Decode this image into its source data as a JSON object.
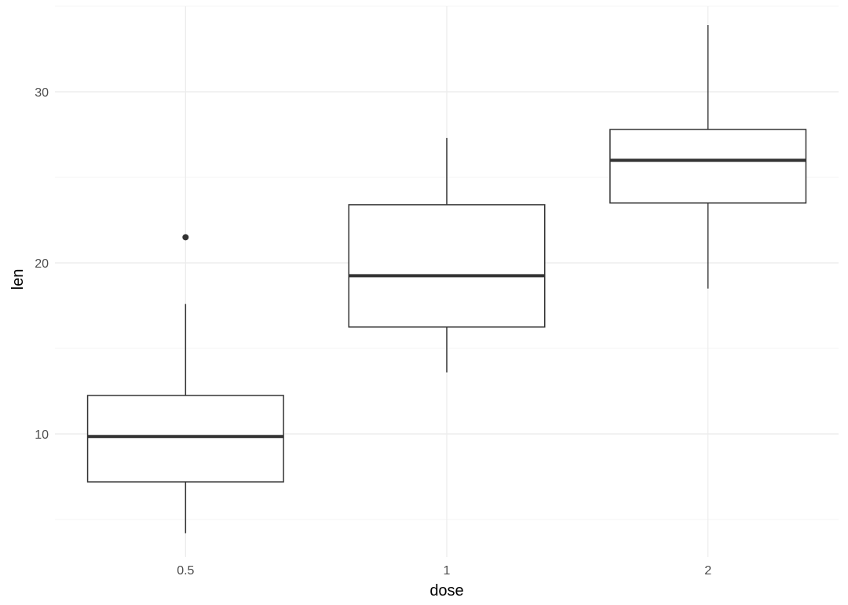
{
  "chart_data": {
    "type": "boxplot",
    "xlabel": "dose",
    "ylabel": "len",
    "categories": [
      "0.5",
      "1",
      "2"
    ],
    "ylim": [
      2.8,
      35.0
    ],
    "y_ticks": [
      10,
      20,
      30
    ],
    "grid": true,
    "legend": "none",
    "boxes": [
      {
        "category": "0.5",
        "min": 4.2,
        "q1": 7.2,
        "median": 9.85,
        "q3": 12.25,
        "max": 17.6,
        "outliers": [
          21.5
        ]
      },
      {
        "category": "1",
        "min": 13.6,
        "q1": 16.25,
        "median": 19.25,
        "q3": 23.4,
        "max": 27.3,
        "outliers": []
      },
      {
        "category": "2",
        "min": 18.5,
        "q1": 23.5,
        "median": 26.0,
        "q3": 27.8,
        "max": 33.9,
        "outliers": []
      }
    ],
    "colors": {
      "box_stroke": "#333333",
      "box_fill": "#ffffff",
      "grid_major": "#ebebeb",
      "grid_minor": "#f5f5f5"
    }
  }
}
